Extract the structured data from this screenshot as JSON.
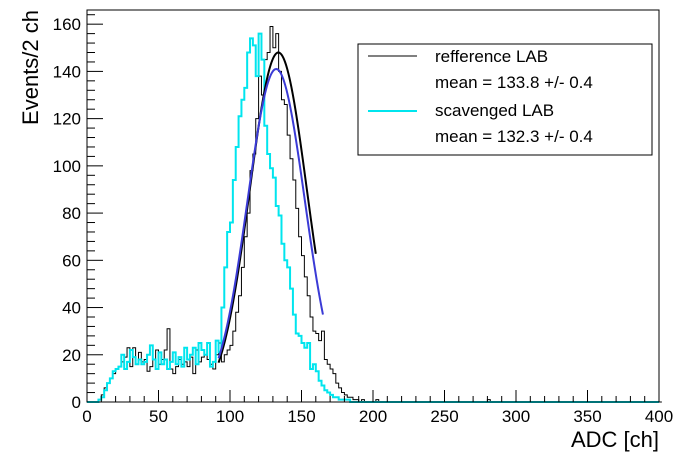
{
  "chart_data": {
    "type": "line",
    "xlabel": "ADC [ch]",
    "ylabel": "Events/2 ch",
    "xlim": [
      0,
      400
    ],
    "ylim": [
      0,
      166
    ],
    "x_ticks": [
      0,
      50,
      100,
      150,
      200,
      250,
      300,
      350,
      400
    ],
    "y_ticks": [
      0,
      20,
      40,
      60,
      80,
      100,
      120,
      140,
      160
    ],
    "grid": false,
    "legend_position": "top-right",
    "bin_width": 2,
    "legend": [
      {
        "label": "refference LAB",
        "stat": "mean = 133.8 +/- 0.4",
        "color": "#000000"
      },
      {
        "label": "scavenged LAB",
        "stat": "mean = 132.3 +/- 0.4",
        "color": "#00e5ee"
      }
    ],
    "series": [
      {
        "name": "refference LAB",
        "kind": "histogram",
        "color": "#000000",
        "x_start": 0,
        "values": [
          0,
          0,
          0,
          0,
          1,
          3,
          6,
          8,
          10,
          12,
          14,
          15,
          17,
          19,
          23,
          15,
          23,
          16,
          21,
          17,
          18,
          13,
          15,
          18,
          22,
          16,
          18,
          22,
          31,
          14,
          12,
          15,
          18,
          16,
          17,
          15,
          19,
          12,
          22,
          17,
          19,
          20,
          18,
          16,
          14,
          20,
          25,
          17,
          20,
          22,
          24,
          30,
          38,
          45,
          57,
          70,
          80,
          98,
          105,
          120,
          138,
          130,
          145,
          148,
          159,
          150,
          156,
          140,
          128,
          126,
          113,
          103,
          94,
          82,
          70,
          62,
          53,
          45,
          36,
          30,
          29,
          26,
          30,
          18,
          16,
          14,
          12,
          8,
          6,
          4,
          3,
          2,
          2,
          1,
          1,
          0,
          1,
          0,
          0,
          0,
          0,
          1,
          0,
          0,
          0,
          0,
          0,
          0,
          0,
          0,
          0,
          0,
          0,
          0,
          0,
          0,
          0,
          0,
          0,
          0,
          0,
          0,
          0,
          0,
          0,
          0,
          0,
          0,
          0,
          0,
          0,
          0,
          0,
          0,
          0,
          0,
          0,
          0,
          0,
          0,
          1,
          0,
          0,
          0,
          0,
          0,
          0,
          0,
          0,
          0,
          0,
          0,
          0,
          0,
          0,
          0,
          0,
          0,
          0,
          0,
          0,
          0,
          0,
          0,
          0,
          0,
          0,
          0,
          0,
          0,
          0,
          0,
          0,
          0,
          0,
          0,
          0,
          0,
          0,
          0,
          0,
          0,
          0,
          0,
          0,
          0,
          0,
          0,
          0,
          0,
          0,
          0,
          0,
          0,
          0,
          0,
          0,
          0,
          0,
          0,
          0
        ]
      },
      {
        "name": "scavenged LAB",
        "kind": "histogram",
        "color": "#00e5ee",
        "x_start": 0,
        "values": [
          0,
          0,
          0,
          0,
          1,
          2,
          5,
          8,
          10,
          13,
          14,
          15,
          20,
          14,
          17,
          22,
          19,
          16,
          18,
          16,
          17,
          20,
          24,
          18,
          14,
          21,
          16,
          18,
          14,
          17,
          21,
          16,
          19,
          15,
          23,
          18,
          20,
          23,
          16,
          25,
          22,
          20,
          25,
          15,
          17,
          26,
          21,
          40,
          57,
          72,
          76,
          94,
          108,
          121,
          128,
          133,
          148,
          154,
          151,
          138,
          156,
          145,
          117,
          105,
          99,
          95,
          83,
          79,
          67,
          60,
          57,
          48,
          37,
          29,
          28,
          25,
          23,
          25,
          14,
          16,
          13,
          9,
          7,
          5,
          4,
          3,
          2,
          2,
          1,
          1,
          1,
          1,
          0,
          0,
          0,
          0,
          0,
          0,
          0,
          0,
          0,
          0,
          0,
          0,
          0,
          0,
          0,
          0,
          0,
          0,
          0,
          0,
          0,
          0,
          0,
          0,
          0,
          0,
          0,
          0,
          0,
          0,
          0,
          0,
          0,
          0,
          0,
          0,
          0,
          0,
          0,
          0,
          0,
          0,
          0,
          0,
          0,
          0,
          0,
          0,
          0,
          0,
          0,
          0,
          0,
          0,
          0,
          0,
          0,
          0,
          0,
          0,
          0,
          0,
          0,
          0,
          0,
          0,
          0,
          0,
          0,
          0,
          0,
          0,
          0,
          0,
          0,
          0,
          0,
          0,
          0,
          0,
          0,
          0,
          0,
          0,
          0,
          0,
          0,
          0,
          0,
          0,
          0,
          0,
          0,
          0,
          0,
          0,
          0,
          0,
          0,
          0,
          0,
          0,
          0,
          0,
          0,
          0,
          0,
          0
        ]
      },
      {
        "kind": "gaussian-fit",
        "color": "#000000",
        "amplitude": 148,
        "mean": 133.8,
        "sigma": 20,
        "range": [
          92,
          160
        ]
      },
      {
        "kind": "gaussian-fit",
        "color": "#3b3bd6",
        "amplitude": 141,
        "mean": 132.3,
        "sigma": 20,
        "range": [
          92,
          165
        ]
      }
    ]
  }
}
